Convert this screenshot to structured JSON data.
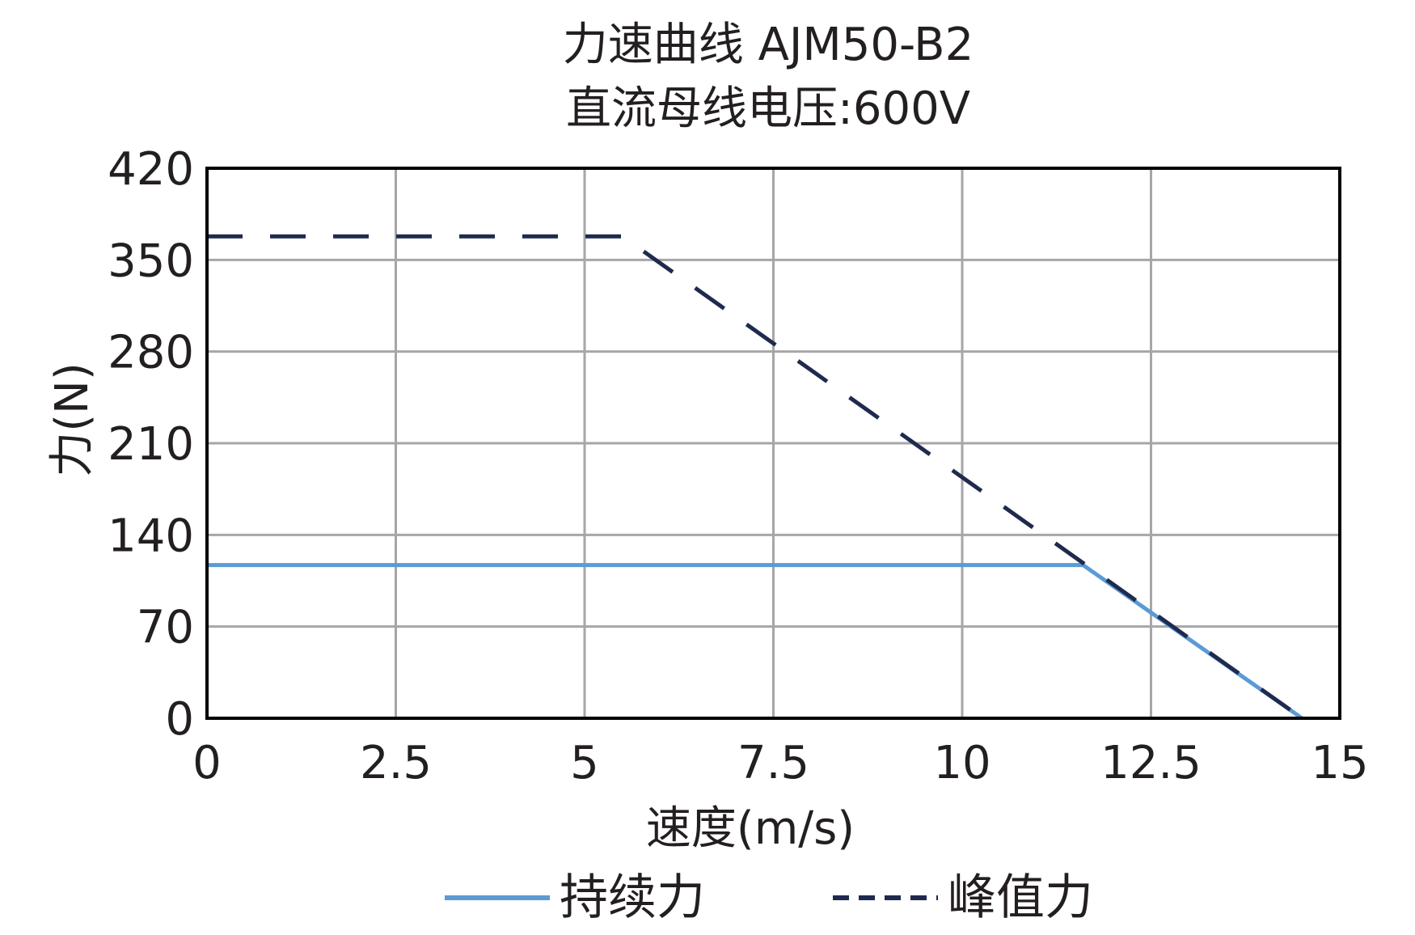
{
  "chart_data": {
    "type": "line",
    "title": "力速曲线 AJM50-B2",
    "subtitle": "直流母线电压:600V",
    "xlabel": "速度(m/s)",
    "ylabel": "力(N)",
    "xlim": [
      0,
      15
    ],
    "ylim": [
      0,
      420
    ],
    "xticks": [
      0,
      2.5,
      5,
      7.5,
      10,
      12.5,
      15
    ],
    "xtick_labels": [
      "0",
      "2.5",
      "5",
      "7.5",
      "10",
      "12.5",
      "15"
    ],
    "yticks": [
      0,
      70,
      140,
      210,
      280,
      350,
      420
    ],
    "ytick_labels": [
      "0",
      "70",
      "140",
      "210",
      "280",
      "350",
      "420"
    ],
    "grid": true,
    "legend_position": "bottom",
    "series": [
      {
        "name": "持续力",
        "style": "solid",
        "color": "#5b9bd5",
        "x": [
          0,
          11.6,
          14.5
        ],
        "y": [
          117,
          117,
          0
        ]
      },
      {
        "name": "峰值力",
        "style": "dashed",
        "color": "#1f2a4e",
        "x": [
          0,
          5.5,
          14.5
        ],
        "y": [
          368,
          368,
          0
        ]
      }
    ]
  }
}
